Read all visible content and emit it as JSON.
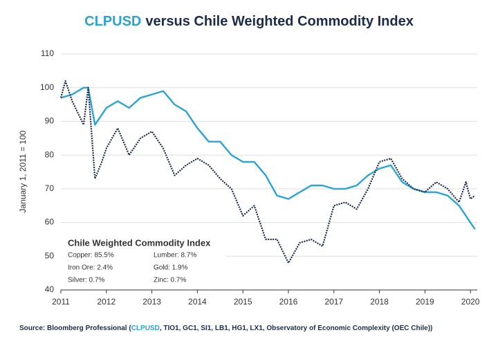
{
  "chart_data": {
    "type": "line",
    "title_parts": [
      {
        "text": "CLPUSD",
        "color": "#29a3d8"
      },
      {
        "text": "versus Chile Weighted Commodity Index",
        "color": "#1c2b4a"
      }
    ],
    "y_label": "January 1, 2011 = 100",
    "source_parts": [
      {
        "text": "Source: Bloomberg Professional (",
        "color": "#1c2b4a"
      },
      {
        "text": "CLPUSD",
        "color": "#29a3d8"
      },
      {
        "text": ", TIO1, GC1, SI1, LB1, HG1, LX1, Observatory of Economic Complexity (OEC Chile))",
        "color": "#1c2b4a"
      }
    ],
    "inset": {
      "title": "Chile Weighted Commodity Index",
      "items": [
        "Copper: 85.5%",
        "Lumber: 8.7%",
        "Iron Ore: 2.4%",
        "Gold: 1.9%",
        "Silver: 0.7%",
        "Zinc: 0.7%"
      ]
    },
    "xlim": [
      2011,
      2020.15
    ],
    "xticks": [
      2011,
      2012,
      2013,
      2014,
      2015,
      2016,
      2017,
      2018,
      2019,
      2020
    ],
    "ylim": [
      40,
      110
    ],
    "yticks": [
      40,
      50,
      60,
      70,
      80,
      90,
      100,
      110
    ],
    "grid": true,
    "series": [
      {
        "name": "CLPUSD",
        "color": "#29a3d8",
        "dash": false,
        "x": [
          2011,
          2011.25,
          2011.5,
          2011.6,
          2011.75,
          2012,
          2012.25,
          2012.5,
          2012.75,
          2013,
          2013.25,
          2013.5,
          2013.75,
          2014,
          2014.25,
          2014.5,
          2014.75,
          2015,
          2015.25,
          2015.5,
          2015.75,
          2016,
          2016.25,
          2016.5,
          2016.75,
          2017,
          2017.25,
          2017.5,
          2017.75,
          2018,
          2018.25,
          2018.5,
          2018.75,
          2019,
          2019.25,
          2019.5,
          2019.75,
          2020,
          2020.1
        ],
        "values": [
          97,
          98,
          100,
          100,
          89,
          94,
          96,
          94,
          97,
          98,
          99,
          95,
          93,
          88,
          84,
          84,
          80,
          78,
          78,
          74,
          68,
          67,
          69,
          71,
          71,
          70,
          70,
          71,
          74,
          76,
          77,
          72,
          70,
          69,
          69,
          68,
          65,
          60,
          58
        ]
      },
      {
        "name": "Chile Weighted Commodity Index",
        "color": "#1c2b4a",
        "dash": true,
        "x": [
          2011,
          2011.1,
          2011.25,
          2011.5,
          2011.6,
          2011.75,
          2011.9,
          2012,
          2012.25,
          2012.5,
          2012.75,
          2013,
          2013.25,
          2013.5,
          2013.75,
          2014,
          2014.25,
          2014.5,
          2014.75,
          2015,
          2015.25,
          2015.5,
          2015.75,
          2016,
          2016.25,
          2016.5,
          2016.75,
          2017,
          2017.25,
          2017.5,
          2017.75,
          2018,
          2018.25,
          2018.5,
          2018.75,
          2019,
          2019.25,
          2019.5,
          2019.75,
          2019.9,
          2020,
          2020.1
        ],
        "values": [
          97,
          102,
          96,
          89,
          100,
          73,
          78,
          82,
          88,
          80,
          85,
          87,
          82,
          74,
          77,
          79,
          77,
          73,
          70,
          62,
          65,
          55,
          55,
          48,
          54,
          55,
          53,
          65,
          66,
          64,
          70,
          78,
          79,
          73,
          70,
          69,
          72,
          70,
          66,
          72,
          67,
          68
        ]
      }
    ]
  }
}
